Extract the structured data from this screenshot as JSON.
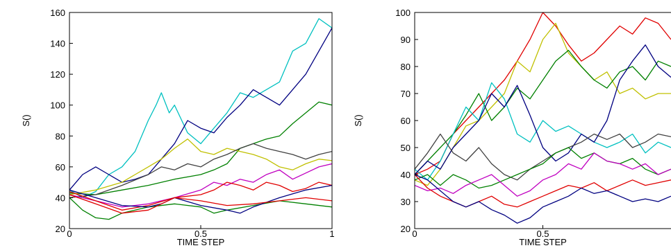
{
  "chart_data": [
    {
      "type": "line",
      "xlabel": "TIME STEP",
      "ylabel": "S()",
      "xlim": [
        0,
        1
      ],
      "ylim": [
        20,
        160
      ],
      "xticks": [
        0,
        0.5,
        1
      ],
      "xtick_labels": [
        "0",
        "0.5",
        "1"
      ],
      "yticks": [
        20,
        40,
        60,
        80,
        100,
        120,
        140,
        160
      ],
      "ytick_labels": [
        "20",
        "40",
        "60",
        "80",
        "100",
        "120",
        "140",
        "160"
      ],
      "grid": false,
      "series": [
        {
          "color": "#00c0c0",
          "x": [
            0,
            0.05,
            0.1,
            0.15,
            0.2,
            0.25,
            0.3,
            0.33,
            0.35,
            0.38,
            0.4,
            0.45,
            0.5,
            0.55,
            0.6,
            0.65,
            0.7,
            0.75,
            0.8,
            0.85,
            0.9,
            0.95,
            1.0
          ],
          "y": [
            45,
            40,
            44,
            55,
            60,
            70,
            90,
            100,
            108,
            95,
            100,
            82,
            75,
            85,
            95,
            108,
            105,
            110,
            115,
            135,
            140,
            156,
            150
          ]
        },
        {
          "color": "#000080",
          "x": [
            0,
            0.05,
            0.1,
            0.15,
            0.2,
            0.25,
            0.3,
            0.35,
            0.4,
            0.45,
            0.5,
            0.55,
            0.6,
            0.65,
            0.7,
            0.75,
            0.8,
            0.85,
            0.9,
            0.95,
            1.0
          ],
          "y": [
            45,
            55,
            60,
            55,
            50,
            52,
            55,
            65,
            75,
            90,
            85,
            82,
            92,
            100,
            110,
            105,
            100,
            110,
            120,
            135,
            150
          ]
        },
        {
          "color": "#008000",
          "x": [
            0,
            0.1,
            0.2,
            0.3,
            0.4,
            0.5,
            0.55,
            0.6,
            0.65,
            0.7,
            0.75,
            0.8,
            0.85,
            0.9,
            0.95,
            1.0
          ],
          "y": [
            43,
            42,
            45,
            48,
            52,
            55,
            58,
            62,
            72,
            75,
            78,
            80,
            88,
            95,
            102,
            100
          ]
        },
        {
          "color": "#c0c000",
          "x": [
            0,
            0.1,
            0.2,
            0.25,
            0.3,
            0.35,
            0.4,
            0.45,
            0.5,
            0.55,
            0.6,
            0.65,
            0.7,
            0.75,
            0.8,
            0.85,
            0.9,
            0.95,
            1.0
          ],
          "y": [
            42,
            45,
            50,
            55,
            60,
            65,
            72,
            78,
            70,
            68,
            72,
            70,
            68,
            65,
            60,
            58,
            62,
            65,
            64
          ]
        },
        {
          "color": "#404040",
          "x": [
            0,
            0.1,
            0.2,
            0.3,
            0.35,
            0.4,
            0.45,
            0.5,
            0.55,
            0.6,
            0.65,
            0.7,
            0.75,
            0.8,
            0.85,
            0.9,
            0.95,
            1.0
          ],
          "y": [
            40,
            42,
            48,
            55,
            60,
            58,
            62,
            60,
            65,
            68,
            72,
            75,
            72,
            70,
            68,
            65,
            68,
            70
          ]
        },
        {
          "color": "#c000c0",
          "x": [
            0,
            0.1,
            0.2,
            0.3,
            0.4,
            0.5,
            0.55,
            0.6,
            0.65,
            0.7,
            0.75,
            0.8,
            0.85,
            0.9,
            0.95,
            1.0
          ],
          "y": [
            42,
            38,
            34,
            36,
            40,
            45,
            50,
            48,
            52,
            50,
            55,
            58,
            52,
            56,
            60,
            62
          ]
        },
        {
          "color": "#e00000",
          "x": [
            0,
            0.1,
            0.2,
            0.3,
            0.4,
            0.5,
            0.55,
            0.6,
            0.65,
            0.7,
            0.75,
            0.8,
            0.85,
            0.9,
            0.95,
            1.0
          ],
          "y": [
            44,
            38,
            32,
            35,
            40,
            42,
            45,
            50,
            48,
            45,
            50,
            48,
            44,
            46,
            50,
            48
          ]
        },
        {
          "color": "#008000",
          "x": [
            0,
            0.05,
            0.1,
            0.15,
            0.2,
            0.3,
            0.4,
            0.5,
            0.55,
            0.6,
            0.7,
            0.8,
            0.9,
            1.0
          ],
          "y": [
            40,
            32,
            27,
            26,
            30,
            34,
            36,
            34,
            30,
            32,
            35,
            38,
            36,
            34
          ]
        },
        {
          "color": "#000080",
          "x": [
            0,
            0.1,
            0.2,
            0.3,
            0.35,
            0.4,
            0.5,
            0.6,
            0.65,
            0.7,
            0.8,
            0.9,
            1.0
          ],
          "y": [
            45,
            40,
            35,
            34,
            36,
            40,
            35,
            32,
            30,
            34,
            40,
            45,
            48
          ]
        },
        {
          "color": "#e00000",
          "x": [
            0,
            0.1,
            0.2,
            0.3,
            0.4,
            0.5,
            0.6,
            0.7,
            0.8,
            0.9,
            1.0
          ],
          "y": [
            42,
            36,
            30,
            32,
            40,
            38,
            35,
            36,
            38,
            40,
            38
          ]
        }
      ]
    },
    {
      "type": "line",
      "xlabel": "TIME STEP",
      "ylabel": "S()",
      "xlim": [
        0,
        1
      ],
      "ylim": [
        20,
        100
      ],
      "xticks": [
        0,
        0.5
      ],
      "xtick_labels": [
        "0",
        "0.5"
      ],
      "yticks": [
        20,
        30,
        40,
        50,
        60,
        70,
        80,
        90,
        100
      ],
      "ytick_labels": [
        "20",
        "30",
        "40",
        "50",
        "60",
        "70",
        "80",
        "90",
        "100"
      ],
      "grid": false,
      "series": [
        {
          "color": "#e00000",
          "x": [
            0,
            0.05,
            0.1,
            0.15,
            0.2,
            0.25,
            0.3,
            0.35,
            0.4,
            0.45,
            0.5,
            0.55,
            0.6,
            0.65,
            0.7,
            0.75,
            0.8,
            0.85,
            0.9,
            0.95,
            1.0
          ],
          "y": [
            40,
            42,
            45,
            55,
            60,
            65,
            70,
            75,
            82,
            90,
            100,
            95,
            88,
            82,
            85,
            90,
            95,
            92,
            98,
            96,
            90
          ]
        },
        {
          "color": "#c0c000",
          "x": [
            0,
            0.05,
            0.1,
            0.15,
            0.2,
            0.25,
            0.3,
            0.35,
            0.4,
            0.45,
            0.5,
            0.55,
            0.6,
            0.65,
            0.7,
            0.75,
            0.8,
            0.85,
            0.9,
            0.95,
            1.0
          ],
          "y": [
            38,
            36,
            42,
            50,
            58,
            60,
            65,
            70,
            82,
            78,
            90,
            96,
            85,
            80,
            75,
            78,
            70,
            72,
            68,
            70,
            70
          ]
        },
        {
          "color": "#008000",
          "x": [
            0,
            0.05,
            0.1,
            0.15,
            0.2,
            0.25,
            0.3,
            0.35,
            0.4,
            0.45,
            0.5,
            0.55,
            0.6,
            0.65,
            0.7,
            0.75,
            0.8,
            0.85,
            0.9,
            0.95,
            1.0
          ],
          "y": [
            40,
            45,
            50,
            55,
            62,
            70,
            60,
            65,
            72,
            68,
            75,
            82,
            86,
            80,
            75,
            72,
            78,
            80,
            75,
            82,
            80
          ]
        },
        {
          "color": "#00c0c0",
          "x": [
            0,
            0.05,
            0.1,
            0.15,
            0.2,
            0.25,
            0.3,
            0.35,
            0.4,
            0.45,
            0.5,
            0.55,
            0.6,
            0.65,
            0.7,
            0.75,
            0.8,
            0.85,
            0.9,
            0.95,
            1.0
          ],
          "y": [
            42,
            38,
            45,
            55,
            65,
            60,
            74,
            68,
            55,
            52,
            60,
            56,
            58,
            55,
            52,
            50,
            52,
            55,
            48,
            52,
            50
          ]
        },
        {
          "color": "#000080",
          "x": [
            0,
            0.05,
            0.1,
            0.15,
            0.2,
            0.25,
            0.3,
            0.35,
            0.4,
            0.45,
            0.5,
            0.55,
            0.6,
            0.65,
            0.7,
            0.75,
            0.8,
            0.85,
            0.9,
            0.95,
            1.0
          ],
          "y": [
            40,
            45,
            42,
            50,
            55,
            60,
            70,
            65,
            73,
            62,
            50,
            45,
            48,
            55,
            52,
            60,
            75,
            82,
            88,
            80,
            76
          ]
        },
        {
          "color": "#404040",
          "x": [
            0,
            0.05,
            0.1,
            0.15,
            0.2,
            0.25,
            0.3,
            0.35,
            0.4,
            0.45,
            0.5,
            0.55,
            0.6,
            0.65,
            0.7,
            0.75,
            0.8,
            0.85,
            0.9,
            0.95,
            1.0
          ],
          "y": [
            42,
            48,
            55,
            48,
            45,
            50,
            44,
            40,
            38,
            42,
            45,
            48,
            50,
            52,
            55,
            53,
            55,
            50,
            52,
            55,
            54
          ]
        },
        {
          "color": "#008000",
          "x": [
            0,
            0.05,
            0.1,
            0.15,
            0.2,
            0.25,
            0.3,
            0.35,
            0.4,
            0.45,
            0.5,
            0.55,
            0.6,
            0.65,
            0.7,
            0.75,
            0.8,
            0.85,
            0.9,
            0.95,
            1.0
          ],
          "y": [
            38,
            40,
            36,
            40,
            38,
            35,
            36,
            38,
            40,
            42,
            44,
            48,
            50,
            46,
            48,
            45,
            44,
            46,
            42,
            40,
            42
          ]
        },
        {
          "color": "#c000c0",
          "x": [
            0,
            0.05,
            0.1,
            0.15,
            0.2,
            0.25,
            0.3,
            0.35,
            0.4,
            0.45,
            0.5,
            0.55,
            0.6,
            0.65,
            0.7,
            0.75,
            0.8,
            0.85,
            0.9,
            0.95,
            1.0
          ],
          "y": [
            36,
            34,
            35,
            33,
            36,
            38,
            40,
            36,
            32,
            34,
            38,
            40,
            44,
            42,
            48,
            45,
            44,
            42,
            44,
            40,
            42
          ]
        },
        {
          "color": "#e00000",
          "x": [
            0,
            0.05,
            0.1,
            0.15,
            0.2,
            0.25,
            0.3,
            0.35,
            0.4,
            0.45,
            0.5,
            0.55,
            0.6,
            0.65,
            0.7,
            0.75,
            0.8,
            0.85,
            0.9,
            0.95,
            1.0
          ],
          "y": [
            40,
            35,
            32,
            30,
            28,
            30,
            32,
            29,
            28,
            30,
            32,
            34,
            36,
            35,
            37,
            34,
            36,
            38,
            36,
            37,
            38
          ]
        },
        {
          "color": "#000080",
          "x": [
            0,
            0.05,
            0.1,
            0.15,
            0.2,
            0.25,
            0.3,
            0.35,
            0.4,
            0.45,
            0.5,
            0.55,
            0.6,
            0.65,
            0.7,
            0.75,
            0.8,
            0.85,
            0.9,
            0.95,
            1.0
          ],
          "y": [
            40,
            38,
            34,
            30,
            28,
            30,
            27,
            25,
            22,
            24,
            28,
            30,
            32,
            35,
            33,
            34,
            32,
            30,
            31,
            30,
            32
          ]
        }
      ]
    }
  ]
}
